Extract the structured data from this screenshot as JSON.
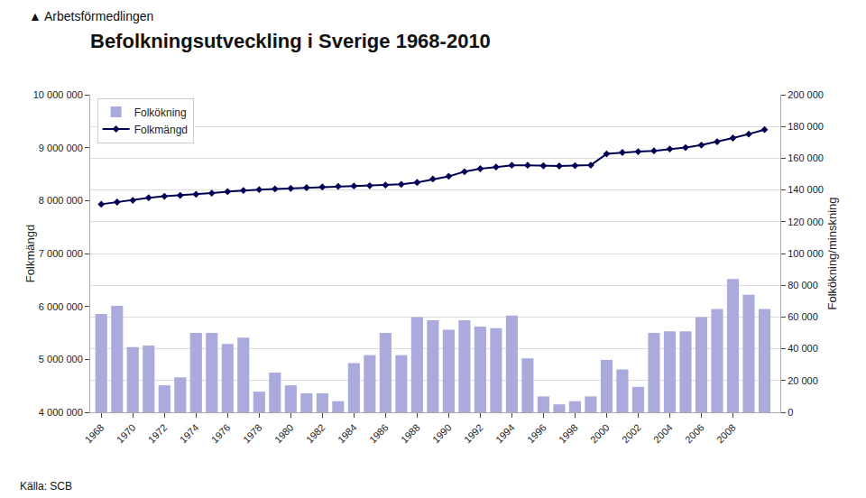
{
  "chart_data": {
    "type": "bar",
    "title": "Befolkningsutveckling i Sverige 1968-2010",
    "annotations": [
      "▲ Arbetsförmedlingen",
      "Källa: SCB"
    ],
    "x": [
      1968,
      1969,
      1970,
      1971,
      1972,
      1973,
      1974,
      1975,
      1976,
      1977,
      1978,
      1979,
      1980,
      1981,
      1982,
      1983,
      1984,
      1985,
      1986,
      1987,
      1988,
      1989,
      1990,
      1991,
      1992,
      1993,
      1994,
      1995,
      1996,
      1997,
      1998,
      1999,
      2000,
      2001,
      2002,
      2003,
      2004,
      2005,
      2006,
      2007,
      2008,
      2009,
      2010
    ],
    "series": [
      {
        "name": "Folkökning",
        "type": "bar",
        "axis": "y2",
        "color": "#aaaadd",
        "values": [
          62000,
          67000,
          41000,
          42000,
          17000,
          22000,
          50000,
          50000,
          43000,
          47000,
          13000,
          25000,
          17000,
          12000,
          12000,
          7000,
          31000,
          36000,
          50000,
          36000,
          60000,
          58000,
          52000,
          58000,
          54000,
          53000,
          61000,
          34000,
          10000,
          5000,
          7000,
          10000,
          33000,
          27000,
          16000,
          50000,
          51000,
          51000,
          60000,
          65000,
          84000,
          74000,
          65000
        ]
      },
      {
        "name": "Folkmängd",
        "type": "line",
        "axis": "y",
        "color": "#000055",
        "marker": "diamond",
        "values": [
          7931000,
          7972000,
          8004000,
          8054000,
          8081000,
          8098000,
          8120000,
          8141000,
          8169000,
          8192000,
          8208000,
          8220000,
          8231000,
          8244000,
          8257000,
          8269000,
          8276000,
          8282000,
          8293000,
          8307000,
          8342000,
          8407000,
          8459000,
          8546000,
          8602000,
          8634000,
          8668000,
          8668000,
          8658000,
          8653000,
          8660000,
          8670000,
          8882000,
          8909000,
          8925000,
          8941000,
          8975000,
          9001000,
          9048000,
          9113000,
          9182000,
          9256000,
          9340000
        ]
      }
    ],
    "xlim": [
      1967.3,
      2011.0
    ],
    "xticks": [
      1968,
      1970,
      1972,
      1974,
      1976,
      1978,
      1980,
      1982,
      1984,
      1986,
      1988,
      1990,
      1992,
      1994,
      1996,
      1998,
      2000,
      2002,
      2004,
      2006,
      2008
    ],
    "ylabel": "Folkmängd",
    "ylim": [
      4000000,
      10000000
    ],
    "yticks": [
      {
        "value": 4000000,
        "label": "4 000 000"
      },
      {
        "value": 5000000,
        "label": "5 000 000"
      },
      {
        "value": 6000000,
        "label": "6 000 000"
      },
      {
        "value": 7000000,
        "label": "7 000 000"
      },
      {
        "value": 8000000,
        "label": "8 000 000"
      },
      {
        "value": 9000000,
        "label": "9 000 000"
      },
      {
        "value": 10000000,
        "label": "10 000 000"
      }
    ],
    "y2label": "Folkökning/minskning",
    "y2lim": [
      0,
      200000
    ],
    "y2ticks": [
      0,
      {
        "value": 20000,
        "label": "20 000"
      },
      {
        "value": 40000,
        "label": "40 000"
      },
      {
        "value": 60000,
        "label": "60 000"
      },
      {
        "value": 80000,
        "label": "80 000"
      },
      {
        "value": 100000,
        "label": "100 000"
      },
      {
        "value": 120000,
        "label": "120 000"
      },
      {
        "value": 140000,
        "label": "140 000"
      },
      {
        "value": 160000,
        "label": "160 000"
      },
      {
        "value": 180000,
        "label": "180 000"
      },
      {
        "value": 200000,
        "label": "200 000"
      }
    ],
    "grid": true,
    "legend": "upper left"
  }
}
